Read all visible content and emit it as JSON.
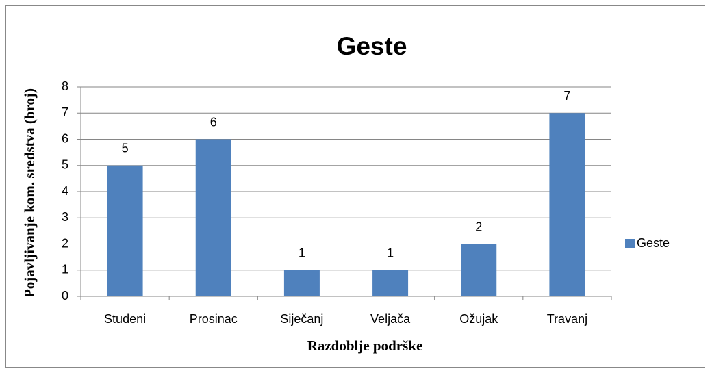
{
  "chart_data": {
    "type": "bar",
    "title": "Geste",
    "x_label": "Razdoblje podrške",
    "y_label": "Pojavljivanje kom. sredstva (broj)",
    "categories": [
      "Studeni",
      "Prosinac",
      "Siječanj",
      "Veljača",
      "Ožujak",
      "Travanj"
    ],
    "series": [
      {
        "name": "Geste",
        "color": "#4f81bd",
        "values": [
          5,
          6,
          1,
          1,
          2,
          7
        ]
      }
    ],
    "ylim": [
      0,
      8
    ],
    "yticks": [
      0,
      1,
      2,
      3,
      4,
      5,
      6,
      7,
      8
    ],
    "grid": true,
    "legend": "right"
  }
}
